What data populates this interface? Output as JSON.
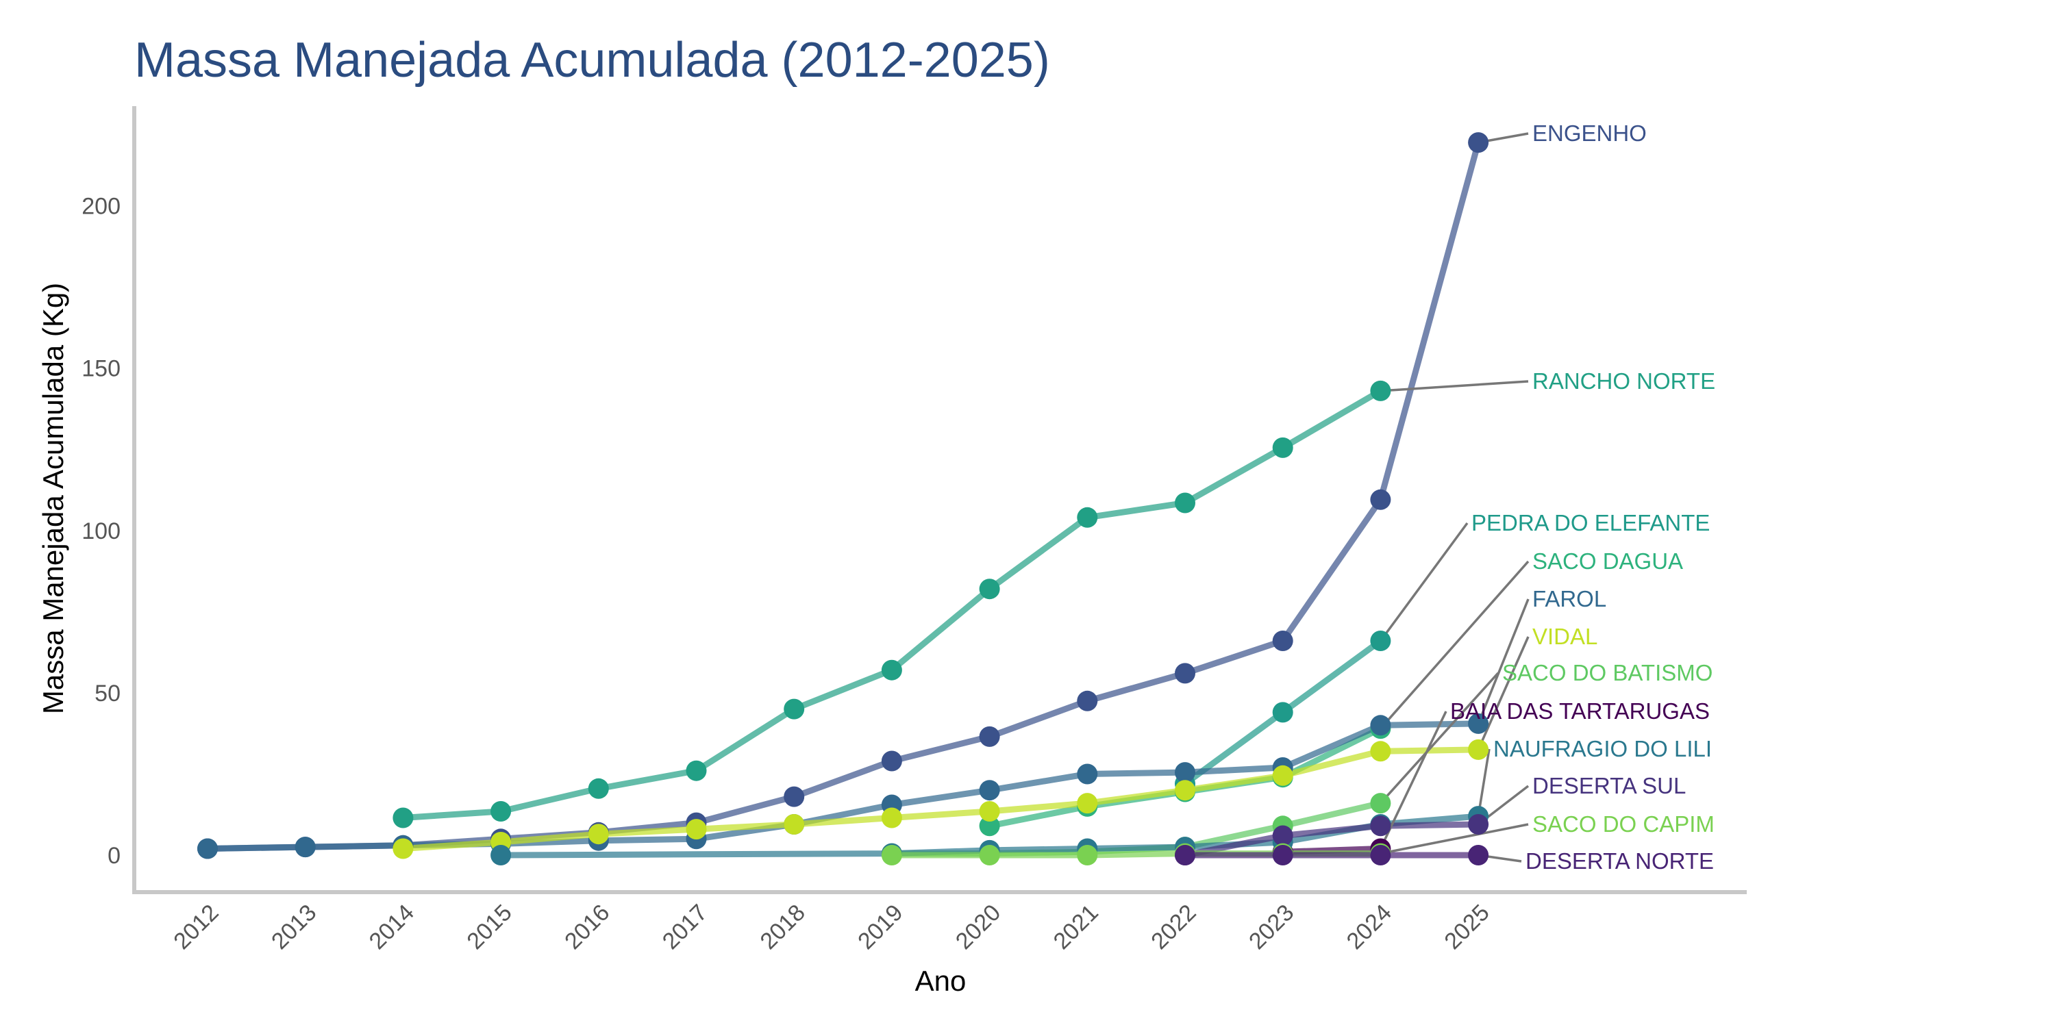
{
  "chart_data": {
    "type": "line",
    "title": "Massa Manejada Acumulada (2012-2025)",
    "xlabel": "Ano",
    "ylabel": "Massa Manejada Acumulada (Kg)",
    "x": [
      2012,
      2013,
      2014,
      2015,
      2016,
      2017,
      2018,
      2019,
      2020,
      2021,
      2022,
      2023,
      2024,
      2025
    ],
    "x_ticks": [
      "2012",
      "2013",
      "2014",
      "2015",
      "2016",
      "2017",
      "2018",
      "2019",
      "2020",
      "2021",
      "2022",
      "2023",
      "2024",
      "2025"
    ],
    "ylim": [
      -10,
      230
    ],
    "y_ticks": [
      0,
      50,
      100,
      150,
      200
    ],
    "grid": false,
    "legend": "direct labels at right end of lines",
    "series": [
      {
        "name": "ENGENHO",
        "color": "#3b528b",
        "points": [
          [
            2012,
            2
          ],
          [
            2013,
            2.5
          ],
          [
            2014,
            3
          ],
          [
            2015,
            5
          ],
          [
            2016,
            7
          ],
          [
            2017,
            10
          ],
          [
            2018,
            18
          ],
          [
            2019,
            29
          ],
          [
            2020,
            36.5
          ],
          [
            2021,
            47.5
          ],
          [
            2022,
            56
          ],
          [
            2023,
            66
          ],
          [
            2024,
            109.5
          ],
          [
            2025,
            219.5
          ]
        ]
      },
      {
        "name": "RANCHO NORTE",
        "color": "#21a085",
        "points": [
          [
            2014,
            11.5
          ],
          [
            2015,
            13.5
          ],
          [
            2016,
            20.5
          ],
          [
            2017,
            26
          ],
          [
            2018,
            45
          ],
          [
            2019,
            57
          ],
          [
            2020,
            82
          ],
          [
            2021,
            104
          ],
          [
            2022,
            108.5
          ],
          [
            2023,
            125.5
          ],
          [
            2024,
            143
          ]
        ]
      },
      {
        "name": "PEDRA DO ELEFANTE",
        "color": "#1f9a8a",
        "points": [
          [
            2022,
            22
          ],
          [
            2023,
            44
          ],
          [
            2024,
            66
          ]
        ]
      },
      {
        "name": "SACO DAGUA",
        "color": "#2db27d",
        "points": [
          [
            2020,
            9
          ],
          [
            2021,
            15
          ],
          [
            2022,
            19.5
          ],
          [
            2023,
            24
          ],
          [
            2024,
            39
          ]
        ]
      },
      {
        "name": "FAROL",
        "color": "#31688e",
        "points": [
          [
            2012,
            2
          ],
          [
            2013,
            2.5
          ],
          [
            2014,
            3
          ],
          [
            2015,
            3.5
          ],
          [
            2016,
            4.5
          ],
          [
            2017,
            5
          ],
          [
            2018,
            9.5
          ],
          [
            2019,
            15.5
          ],
          [
            2020,
            20
          ],
          [
            2021,
            25
          ],
          [
            2022,
            25.5
          ],
          [
            2023,
            27
          ],
          [
            2024,
            40
          ],
          [
            2025,
            40.5
          ]
        ]
      },
      {
        "name": "VIDAL",
        "color": "#c2df23",
        "points": [
          [
            2014,
            2
          ],
          [
            2015,
            4
          ],
          [
            2016,
            6.5
          ],
          [
            2017,
            8
          ],
          [
            2018,
            9.5
          ],
          [
            2019,
            11.5
          ],
          [
            2020,
            13.5
          ],
          [
            2021,
            16
          ],
          [
            2022,
            20
          ],
          [
            2023,
            24.5
          ],
          [
            2024,
            32
          ],
          [
            2025,
            32.5
          ]
        ]
      },
      {
        "name": "SACO DO BATISMO",
        "color": "#5ec962",
        "points": [
          [
            2019,
            0.5
          ],
          [
            2020,
            0.5
          ],
          [
            2021,
            1
          ],
          [
            2022,
            2.5
          ],
          [
            2023,
            9
          ],
          [
            2024,
            16
          ]
        ]
      },
      {
        "name": "BAIA DAS TARTARUGAS",
        "color": "#440154",
        "points": [
          [
            2023,
            1
          ],
          [
            2024,
            2
          ]
        ]
      },
      {
        "name": "NAUFRAGIO DO LILI",
        "color": "#2a788e",
        "points": [
          [
            2015,
            0
          ],
          [
            2019,
            0.5
          ],
          [
            2020,
            1.5
          ],
          [
            2021,
            2
          ],
          [
            2022,
            2.5
          ],
          [
            2023,
            4
          ],
          [
            2024,
            9.5
          ],
          [
            2025,
            12
          ]
        ]
      },
      {
        "name": "DESERTA SUL",
        "color": "#46337e",
        "points": [
          [
            2022,
            0
          ],
          [
            2023,
            6
          ],
          [
            2024,
            9
          ],
          [
            2025,
            9.5
          ]
        ]
      },
      {
        "name": "SACO DO CAPIM",
        "color": "#7ad151",
        "points": [
          [
            2019,
            0
          ],
          [
            2020,
            0
          ],
          [
            2021,
            0
          ],
          [
            2022,
            0.5
          ],
          [
            2023,
            0.5
          ],
          [
            2024,
            0.5
          ]
        ]
      },
      {
        "name": "DESERTA NORTE",
        "color": "#482475",
        "points": [
          [
            2022,
            0
          ],
          [
            2023,
            0
          ],
          [
            2024,
            0
          ],
          [
            2025,
            0
          ]
        ]
      }
    ]
  }
}
